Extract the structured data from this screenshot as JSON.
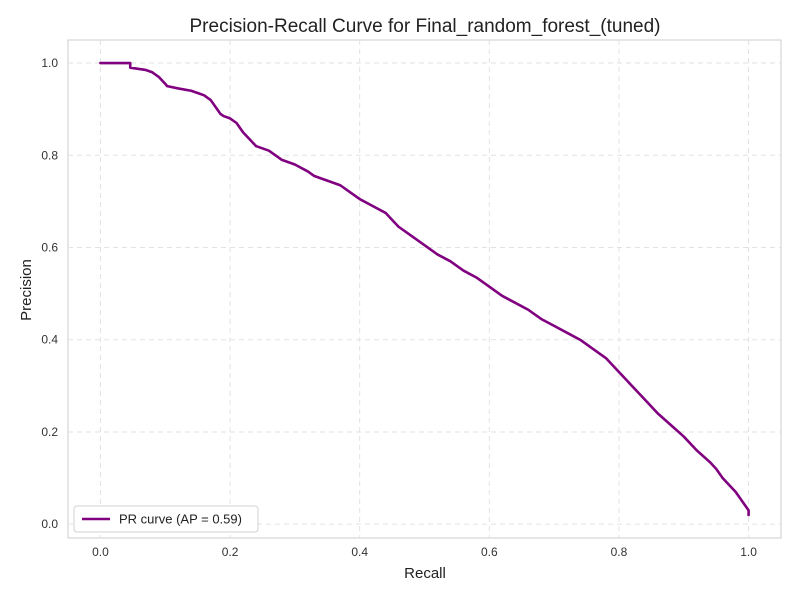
{
  "chart_data": {
    "type": "line",
    "title": "Precision-Recall Curve for Final_random_forest_(tuned)",
    "xlabel": "Recall",
    "ylabel": "Precision",
    "xlim": [
      -0.05,
      1.05
    ],
    "ylim": [
      -0.03,
      1.05
    ],
    "xticks": [
      0.0,
      0.2,
      0.4,
      0.6,
      0.8,
      1.0
    ],
    "xtick_labels": [
      "0.0",
      "0.2",
      "0.4",
      "0.6",
      "0.8",
      "1.0"
    ],
    "yticks": [
      0.0,
      0.2,
      0.4,
      0.6,
      0.8,
      1.0
    ],
    "ytick_labels": [
      "0.0",
      "0.2",
      "0.4",
      "0.6",
      "0.8",
      "1.0"
    ],
    "grid": true,
    "grid_style": "dashed",
    "legend_position": "lower-left",
    "series": [
      {
        "name": "PR curve (AP = 0.59)",
        "color": "#800080",
        "x": [
          0.0,
          0.046,
          0.046,
          0.07,
          0.08,
          0.09,
          0.1,
          0.103,
          0.12,
          0.14,
          0.15,
          0.16,
          0.165,
          0.17,
          0.18,
          0.185,
          0.19,
          0.2,
          0.21,
          0.22,
          0.23,
          0.24,
          0.26,
          0.27,
          0.28,
          0.3,
          0.32,
          0.33,
          0.35,
          0.37,
          0.39,
          0.4,
          0.42,
          0.44,
          0.45,
          0.46,
          0.48,
          0.5,
          0.52,
          0.54,
          0.56,
          0.58,
          0.6,
          0.62,
          0.64,
          0.66,
          0.68,
          0.7,
          0.72,
          0.74,
          0.76,
          0.78,
          0.8,
          0.82,
          0.84,
          0.86,
          0.88,
          0.9,
          0.92,
          0.94,
          0.95,
          0.96,
          0.97,
          0.98,
          0.99,
          1.0,
          1.0
        ],
        "y": [
          1.0,
          1.0,
          0.99,
          0.985,
          0.98,
          0.97,
          0.955,
          0.95,
          0.945,
          0.94,
          0.935,
          0.93,
          0.925,
          0.92,
          0.9,
          0.89,
          0.885,
          0.88,
          0.87,
          0.85,
          0.835,
          0.82,
          0.81,
          0.8,
          0.79,
          0.78,
          0.765,
          0.755,
          0.745,
          0.735,
          0.715,
          0.705,
          0.69,
          0.675,
          0.66,
          0.645,
          0.625,
          0.605,
          0.585,
          0.57,
          0.55,
          0.535,
          0.515,
          0.495,
          0.48,
          0.465,
          0.445,
          0.43,
          0.415,
          0.4,
          0.38,
          0.36,
          0.33,
          0.3,
          0.27,
          0.24,
          0.215,
          0.19,
          0.16,
          0.135,
          0.12,
          0.1,
          0.085,
          0.07,
          0.05,
          0.03,
          0.02
        ]
      }
    ]
  }
}
